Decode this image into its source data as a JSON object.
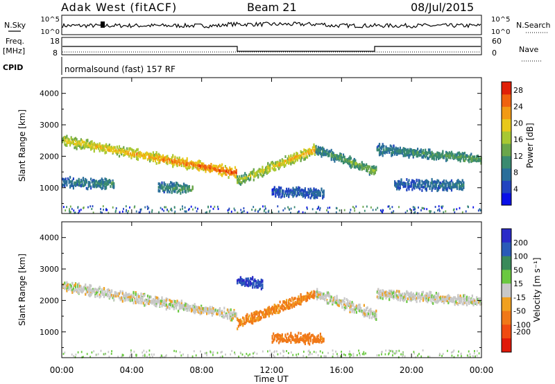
{
  "header": {
    "site": "Adak West (fitACF)",
    "beam": "Beam 21",
    "date": "08/Jul/2015"
  },
  "strips": {
    "nsky_label": "N.Sky",
    "nsearch_label": "N.Search",
    "freq_label_1": "Freq.",
    "freq_label_2": "[MHz]",
    "nave_label": "Nave",
    "cpid_label": "CPID",
    "cpid_text": "normalsound (fast) 157 RF",
    "noise_ticks_left": [
      "10^5",
      "10^0"
    ],
    "noise_ticks_right": [
      "10^5",
      "10^0"
    ],
    "freq_ticks": [
      "18",
      "8"
    ],
    "nave_ticks": [
      "60",
      "0"
    ]
  },
  "colors": {
    "power_scale": [
      "#0a10e8",
      "#2244c0",
      "#2a6e9a",
      "#3a8a70",
      "#6aa64a",
      "#a8c832",
      "#e8c81a",
      "#f29a14",
      "#f0620e",
      "#e02008"
    ],
    "velocity_scale": [
      "#2a2ac8",
      "#2a5ab8",
      "#3a8a5a",
      "#6ac840",
      "#c8c8c8",
      "#f0a020",
      "#f07818",
      "#f04a10",
      "#e01808"
    ]
  },
  "chart_data": [
    {
      "type": "heatmap",
      "name_panel": "power",
      "xlabel": "",
      "ylabel": "Slant Range [km]",
      "x_ticks": [
        "00:00",
        "04:00",
        "08:00",
        "12:00",
        "16:00",
        "20:00",
        "00:00"
      ],
      "y_ticks": [
        1000,
        2000,
        3000,
        4000
      ],
      "xlim_hours": [
        0,
        24
      ],
      "ylim_km": [
        180,
        4500
      ],
      "colorbar_label": "Power [dB]",
      "colorbar_ticks": [
        4,
        8,
        12,
        16,
        20,
        24,
        28
      ],
      "colorbar_range": [
        0,
        30
      ],
      "echo_bands": [
        {
          "t_start": 0.0,
          "t_end": 10.0,
          "range_start_km": 2500,
          "range_end_km": 1450,
          "peak_db": 28
        },
        {
          "t_start": 10.0,
          "t_end": 14.5,
          "range_start_km": 1200,
          "range_end_km": 2200,
          "peak_db": 24
        },
        {
          "t_start": 14.5,
          "t_end": 18.0,
          "range_start_km": 2200,
          "range_end_km": 1500,
          "peak_db": 16
        },
        {
          "t_start": 18.0,
          "t_end": 24.0,
          "range_start_km": 2200,
          "range_end_km": 1900,
          "peak_db": 14
        },
        {
          "t_start": 0.0,
          "t_end": 3.0,
          "range_start_km": 1150,
          "range_end_km": 1100,
          "peak_db": 12
        },
        {
          "t_start": 5.5,
          "t_end": 7.5,
          "range_start_km": 1000,
          "range_end_km": 950,
          "peak_db": 14
        },
        {
          "t_start": 12.0,
          "t_end": 15.0,
          "range_start_km": 850,
          "range_end_km": 800,
          "peak_db": 8
        },
        {
          "t_start": 19.0,
          "t_end": 23.0,
          "range_start_km": 1100,
          "range_end_km": 1050,
          "peak_db": 10
        }
      ]
    },
    {
      "type": "heatmap",
      "name_panel": "velocity",
      "xlabel": "Time UT",
      "ylabel": "Slant Range [km]",
      "x_ticks": [
        "00:00",
        "04:00",
        "08:00",
        "12:00",
        "16:00",
        "20:00",
        "00:00"
      ],
      "y_ticks": [
        1000,
        2000,
        3000,
        4000
      ],
      "xlim_hours": [
        0,
        24
      ],
      "ylim_km": [
        180,
        4500
      ],
      "colorbar_label": "Velocity [m s⁻¹]",
      "colorbar_ticks": [
        200,
        100,
        50,
        15,
        -15,
        -50,
        -100,
        -200
      ],
      "echo_bands": [
        {
          "t_start": 0.0,
          "t_end": 10.0,
          "range_start_km": 2450,
          "range_end_km": 1500,
          "typical_velocity": 0
        },
        {
          "t_start": 10.0,
          "t_end": 14.5,
          "range_start_km": 1250,
          "range_end_km": 2200,
          "typical_velocity": -40
        },
        {
          "t_start": 14.5,
          "t_end": 18.0,
          "range_start_km": 2200,
          "range_end_km": 1500,
          "typical_velocity": 0
        },
        {
          "t_start": 18.0,
          "t_end": 24.0,
          "range_start_km": 2200,
          "range_end_km": 1950,
          "typical_velocity": 0
        },
        {
          "t_start": 12.0,
          "t_end": 15.0,
          "range_start_km": 800,
          "range_end_km": 750,
          "typical_velocity": -50
        },
        {
          "t_start": 10.0,
          "t_end": 11.5,
          "range_start_km": 2600,
          "range_end_km": 2500,
          "typical_velocity": 150
        }
      ]
    }
  ]
}
